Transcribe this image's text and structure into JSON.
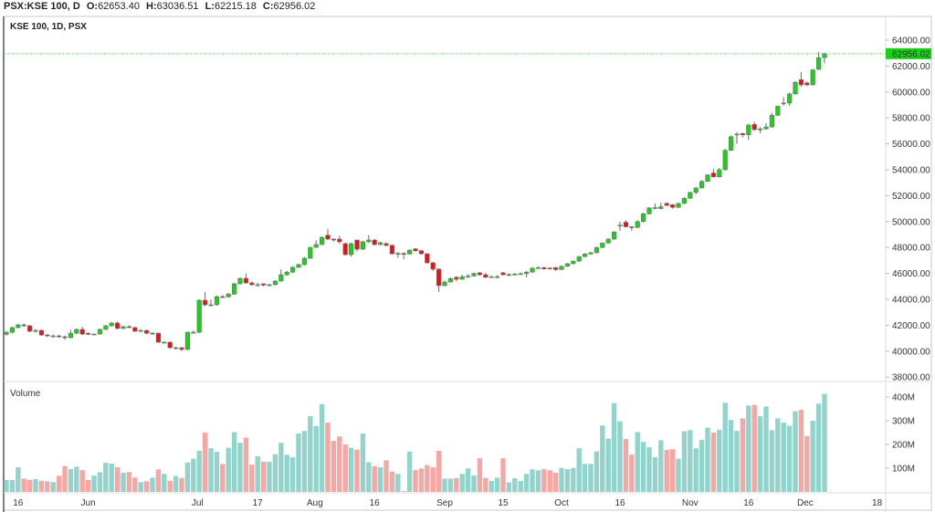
{
  "header": {
    "symbol": "PSX:KSE 100, D",
    "open_label": "O:",
    "open": "62653.40",
    "high_label": "H:",
    "high": "63036.51",
    "low_label": "L:",
    "low": "62215.18",
    "close_label": "C:",
    "close": "62956.02"
  },
  "pane": {
    "title": "KSE 100, 1D, PSX",
    "volume_label": "Volume",
    "last_price": "62956.02"
  },
  "colors": {
    "up": "#19d219",
    "down": "#f01010",
    "vol_up": "#92d3cc",
    "vol_down": "#f6a7a4",
    "last_price_bg": "#16d216",
    "last_line": "#3ad13a"
  },
  "chart_data": {
    "type": "candlestick",
    "title": "KSE 100, 1D, PSX",
    "price_axis": {
      "ticks": [
        "64000.00",
        "62000.00",
        "60000.00",
        "58000.00",
        "56000.00",
        "54000.00",
        "52000.00",
        "50000.00",
        "48000.00",
        "46000.00",
        "44000.00",
        "42000.00",
        "40000.00",
        "38000.00"
      ],
      "range": [
        37400,
        65100
      ]
    },
    "volume_axis": {
      "ticks": [
        "400M",
        "300M",
        "200M",
        "100M"
      ],
      "unit": "M"
    },
    "time_axis": {
      "ticks": [
        {
          "label": "16",
          "bar": 2
        },
        {
          "label": "Jun",
          "bar": 14
        },
        {
          "label": "Jul",
          "bar": 32.7
        },
        {
          "label": "17",
          "bar": 43
        },
        {
          "label": "Aug",
          "bar": 52.8
        },
        {
          "label": "16",
          "bar": 63
        },
        {
          "label": "Sep",
          "bar": 75
        },
        {
          "label": "15",
          "bar": 85
        },
        {
          "label": "Oct",
          "bar": 95
        },
        {
          "label": "16",
          "bar": 105
        },
        {
          "label": "Nov",
          "bar": 117
        },
        {
          "label": "16",
          "bar": 127
        },
        {
          "label": "Dec",
          "bar": 136.7
        },
        {
          "label": "18",
          "bar": 149
        }
      ]
    },
    "columns": [
      "open",
      "high",
      "low",
      "close",
      "volume_M"
    ],
    "candles": [
      [
        41300,
        41560,
        41200,
        41460,
        50
      ],
      [
        41460,
        41900,
        41380,
        41820,
        50
      ],
      [
        41820,
        42120,
        41760,
        42030,
        104
      ],
      [
        42030,
        42130,
        41880,
        41960,
        56
      ],
      [
        41960,
        42030,
        41460,
        41540,
        50
      ],
      [
        41540,
        41700,
        41440,
        41600,
        54
      ],
      [
        41600,
        41680,
        41180,
        41250,
        47
      ],
      [
        41250,
        41330,
        41100,
        41180,
        45
      ],
      [
        41180,
        41300,
        41060,
        41180,
        41
      ],
      [
        41180,
        41260,
        41030,
        41110,
        68
      ],
      [
        41110,
        41200,
        40880,
        41040,
        109
      ],
      [
        41040,
        41650,
        41000,
        41390,
        96
      ],
      [
        41390,
        41760,
        41330,
        41680,
        106
      ],
      [
        41680,
        41880,
        41250,
        41320,
        92
      ],
      [
        41380,
        41440,
        41230,
        41300,
        50
      ],
      [
        41300,
        41380,
        41250,
        41320,
        69
      ],
      [
        41320,
        41740,
        41280,
        41680,
        83
      ],
      [
        41680,
        42020,
        41640,
        41960,
        123
      ],
      [
        41960,
        42260,
        41900,
        42170,
        119
      ],
      [
        42170,
        42300,
        41700,
        41750,
        104
      ],
      [
        41750,
        41960,
        41700,
        41890,
        81
      ],
      [
        41890,
        42000,
        41780,
        41820,
        84
      ],
      [
        41820,
        41880,
        41480,
        41540,
        61
      ],
      [
        41540,
        41700,
        41480,
        41600,
        41
      ],
      [
        41600,
        41660,
        41300,
        41390,
        45
      ],
      [
        41390,
        41460,
        41260,
        41390,
        60
      ],
      [
        41390,
        41450,
        40640,
        40690,
        95
      ],
      [
        40690,
        40780,
        40600,
        40690,
        76
      ],
      [
        40690,
        40760,
        40200,
        40270,
        47
      ],
      [
        40270,
        40340,
        40130,
        40270,
        67
      ],
      [
        40270,
        40300,
        40000,
        40130,
        59
      ],
      [
        40130,
        41500,
        40080,
        41460,
        124
      ],
      [
        41460,
        41600,
        41380,
        41460,
        140
      ],
      [
        41460,
        44000,
        41400,
        43930,
        173
      ],
      [
        43930,
        44580,
        43450,
        43580,
        250
      ],
      [
        43580,
        44000,
        43450,
        43580,
        184
      ],
      [
        43580,
        44300,
        43520,
        44210,
        169
      ],
      [
        44210,
        44330,
        44120,
        44200,
        118
      ],
      [
        44200,
        44500,
        44120,
        44400,
        186
      ],
      [
        44400,
        45280,
        44350,
        45200,
        252
      ],
      [
        45200,
        45700,
        45150,
        45620,
        207
      ],
      [
        45620,
        46000,
        45200,
        45270,
        229
      ],
      [
        45270,
        45380,
        45060,
        45130,
        115
      ],
      [
        45130,
        45280,
        45000,
        45130,
        150
      ],
      [
        45200,
        45220,
        45000,
        45100,
        127
      ],
      [
        45100,
        45200,
        45000,
        45130,
        127
      ],
      [
        45130,
        45480,
        45080,
        45410,
        159
      ],
      [
        45410,
        46300,
        45380,
        45900,
        207
      ],
      [
        45900,
        46200,
        45800,
        46100,
        156
      ],
      [
        46100,
        46560,
        46030,
        46470,
        146
      ],
      [
        46470,
        46750,
        46420,
        46680,
        246
      ],
      [
        46680,
        47260,
        46620,
        47170,
        257
      ],
      [
        47170,
        48060,
        47120,
        48010,
        320
      ],
      [
        48010,
        48560,
        47980,
        48230,
        278
      ],
      [
        48230,
        48850,
        48200,
        48790,
        370
      ],
      [
        48950,
        49450,
        48580,
        48650,
        292
      ],
      [
        48650,
        48700,
        48450,
        48580,
        215
      ],
      [
        48650,
        48900,
        48300,
        48440,
        234
      ],
      [
        48300,
        48380,
        47380,
        47450,
        200
      ],
      [
        47450,
        48380,
        47300,
        48300,
        186
      ],
      [
        48580,
        48500,
        47700,
        47870,
        178
      ],
      [
        47870,
        48520,
        47820,
        48440,
        246
      ],
      [
        48440,
        48950,
        48350,
        48580,
        125
      ],
      [
        48580,
        48650,
        48150,
        48230,
        108
      ],
      [
        48230,
        48450,
        48160,
        48370,
        104
      ],
      [
        48300,
        48400,
        48100,
        48160,
        133
      ],
      [
        48160,
        48250,
        47450,
        47520,
        86
      ],
      [
        47520,
        47650,
        47200,
        47550,
        76
      ],
      [
        47550,
        47620,
        47100,
        47500,
        4
      ],
      [
        47500,
        47850,
        47450,
        47800,
        170
      ],
      [
        47900,
        47950,
        47680,
        47750,
        92
      ],
      [
        47750,
        47800,
        47450,
        47520,
        99
      ],
      [
        47520,
        47560,
        46750,
        46820,
        113
      ],
      [
        46820,
        46900,
        46200,
        46330,
        104
      ],
      [
        46330,
        46400,
        44560,
        45060,
        173
      ],
      [
        45060,
        45450,
        45000,
        45340,
        56
      ],
      [
        45340,
        45700,
        45300,
        45600,
        56
      ],
      [
        45700,
        45800,
        45400,
        45550,
        58
      ],
      [
        45550,
        45900,
        45500,
        45750,
        76
      ],
      [
        45750,
        45950,
        45650,
        45800,
        99
      ],
      [
        45800,
        46080,
        45750,
        46000,
        69
      ],
      [
        46050,
        46100,
        45820,
        45900,
        142
      ],
      [
        45900,
        46050,
        45650,
        45700,
        59
      ],
      [
        45700,
        45820,
        45650,
        45750,
        47
      ],
      [
        45750,
        45900,
        45620,
        45750,
        60
      ],
      [
        46050,
        46100,
        45840,
        45900,
        142
      ],
      [
        45900,
        46000,
        45800,
        45920,
        40
      ],
      [
        45920,
        46050,
        45880,
        45950,
        58
      ],
      [
        45950,
        46080,
        45900,
        45980,
        46
      ],
      [
        45980,
        46200,
        45700,
        46100,
        76
      ],
      [
        46100,
        46500,
        46060,
        46400,
        95
      ],
      [
        46400,
        46550,
        46380,
        46450,
        91
      ],
      [
        46450,
        46500,
        46300,
        46350,
        96
      ],
      [
        46420,
        46460,
        46300,
        46350,
        91
      ],
      [
        46450,
        46500,
        46200,
        46300,
        81
      ],
      [
        46300,
        46620,
        46280,
        46550,
        101
      ],
      [
        46550,
        46800,
        46500,
        46750,
        96
      ],
      [
        46750,
        47000,
        46700,
        46950,
        101
      ],
      [
        46950,
        47350,
        46900,
        47300,
        184
      ],
      [
        47300,
        47560,
        47250,
        47500,
        118
      ],
      [
        47500,
        47650,
        47450,
        47600,
        118
      ],
      [
        47600,
        48050,
        47550,
        48000,
        171
      ],
      [
        48000,
        48400,
        47950,
        48350,
        280
      ],
      [
        48350,
        48700,
        48300,
        48650,
        225
      ],
      [
        48650,
        49250,
        48600,
        49200,
        374
      ],
      [
        49700,
        50000,
        49300,
        49720,
        298
      ],
      [
        49950,
        50100,
        49550,
        49600,
        223
      ],
      [
        49600,
        49650,
        49300,
        49550,
        157
      ],
      [
        49550,
        50100,
        49500,
        50000,
        252
      ],
      [
        50000,
        50700,
        49950,
        50600,
        211
      ],
      [
        50600,
        51120,
        50550,
        51050,
        189
      ],
      [
        51050,
        51400,
        50950,
        51080,
        147
      ],
      [
        51000,
        51450,
        50950,
        51150,
        218
      ],
      [
        51400,
        51500,
        51180,
        51250,
        177
      ],
      [
        51300,
        51350,
        51000,
        51100,
        180
      ],
      [
        51100,
        51450,
        51050,
        51400,
        140
      ],
      [
        51400,
        51900,
        51350,
        51800,
        256
      ],
      [
        51800,
        52300,
        51750,
        52250,
        260
      ],
      [
        52250,
        52650,
        52100,
        52600,
        184
      ],
      [
        52600,
        53200,
        52550,
        53100,
        219
      ],
      [
        53100,
        53650,
        53050,
        53600,
        271
      ],
      [
        53750,
        54050,
        53400,
        53450,
        250
      ],
      [
        53450,
        54150,
        53400,
        54000,
        262
      ],
      [
        54000,
        55600,
        53950,
        55500,
        376
      ],
      [
        55500,
        56650,
        55450,
        56550,
        303
      ],
      [
        56700,
        56900,
        56000,
        56750,
        257
      ],
      [
        56800,
        56850,
        56500,
        56700,
        310
      ],
      [
        56700,
        57550,
        56300,
        57450,
        364
      ],
      [
        57500,
        57700,
        57000,
        57100,
        367
      ],
      [
        57100,
        57300,
        56800,
        57150,
        319
      ],
      [
        57150,
        57600,
        57100,
        57300,
        360
      ],
      [
        57300,
        58400,
        57250,
        58200,
        260
      ],
      [
        58200,
        58950,
        58150,
        58900,
        310
      ],
      [
        59100,
        59600,
        58950,
        59150,
        292
      ],
      [
        59150,
        59950,
        58950,
        59850,
        279
      ],
      [
        59850,
        60850,
        59800,
        60750,
        340
      ],
      [
        60950,
        61550,
        60400,
        60550,
        346
      ],
      [
        60700,
        60800,
        60450,
        60550,
        236
      ],
      [
        60550,
        61800,
        60500,
        61700,
        300
      ],
      [
        61750,
        63100,
        61700,
        62653.4,
        372
      ],
      [
        62653.4,
        63036.51,
        62215.18,
        62956.02,
        413
      ]
    ]
  }
}
